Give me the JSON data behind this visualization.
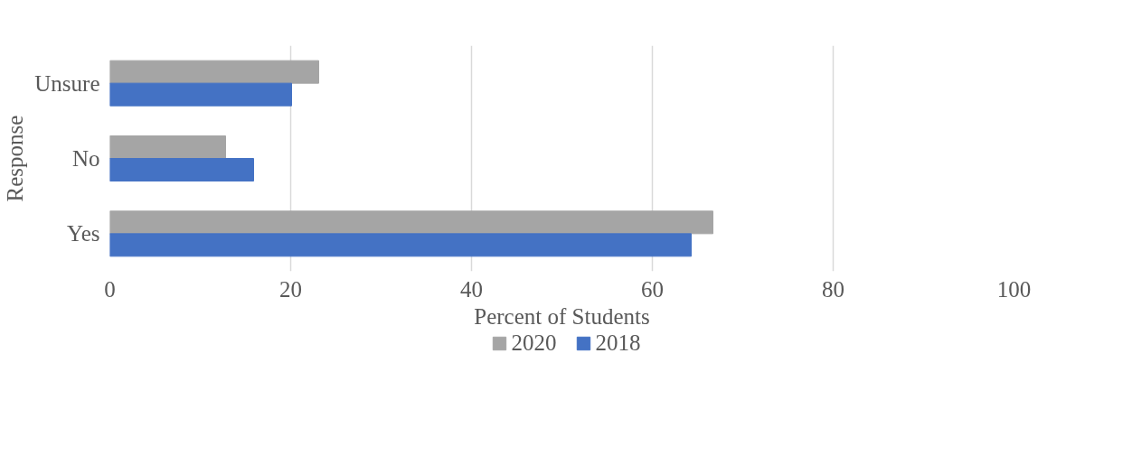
{
  "chart_data": {
    "type": "bar",
    "orientation": "horizontal",
    "xlabel": "Percent of Students",
    "ylabel": "Response",
    "categories": [
      "Unsure",
      "No",
      "Yes"
    ],
    "series": [
      {
        "name": "2020",
        "color": "#a5a5a5",
        "values": [
          23.1,
          12.8,
          66.7
        ]
      },
      {
        "name": "2018",
        "color": "#4472c4",
        "values": [
          20.1,
          15.9,
          64.3
        ]
      }
    ],
    "xlim": [
      0,
      100
    ],
    "xticks": [
      0,
      20,
      40,
      60,
      80,
      100
    ],
    "grid": "x",
    "legend": "bottom"
  }
}
